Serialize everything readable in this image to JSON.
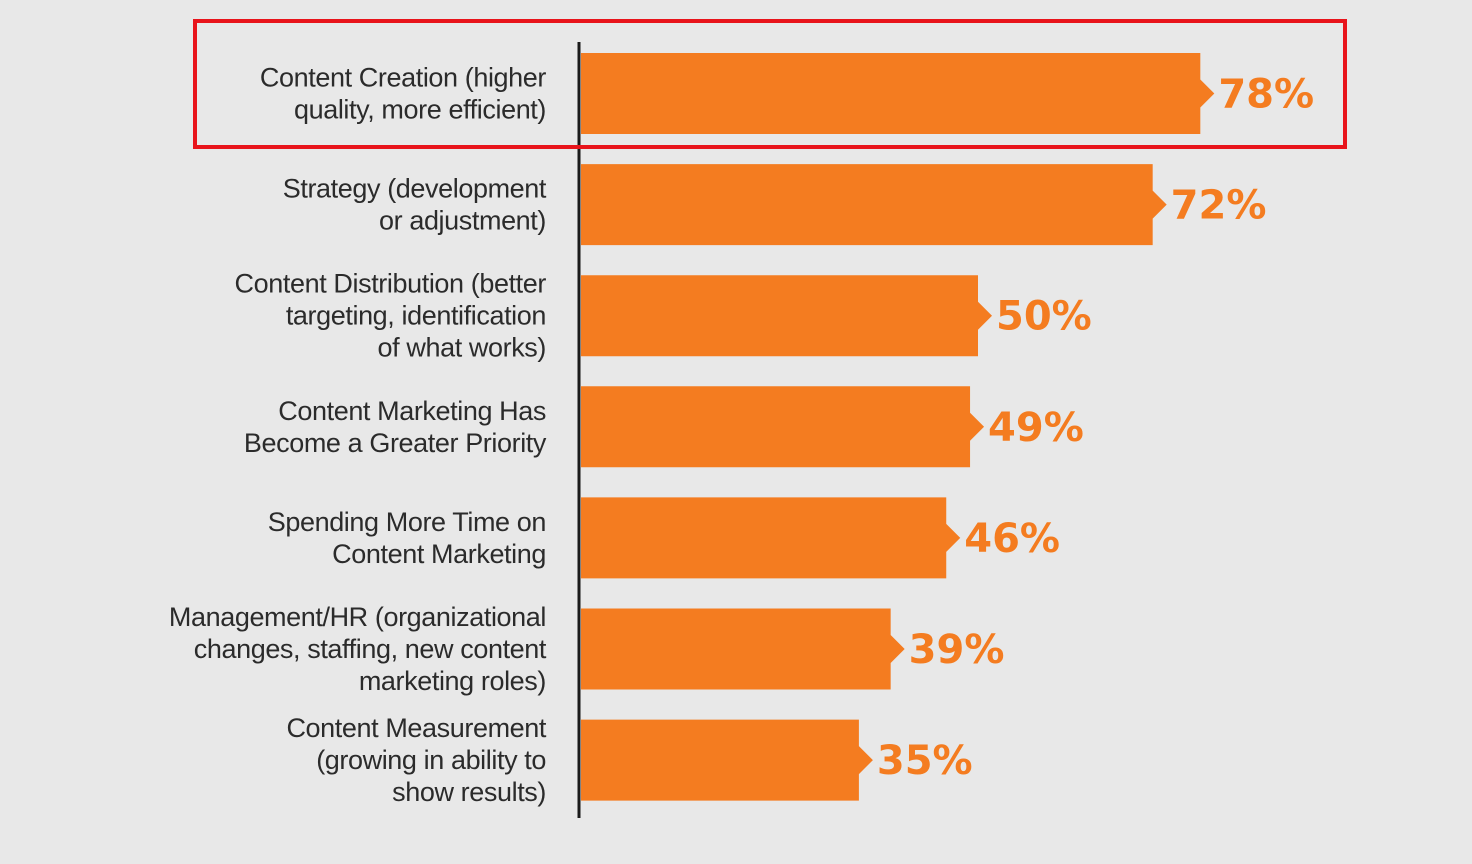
{
  "chart_data": {
    "type": "bar",
    "orientation": "horizontal",
    "categories": [
      [
        "Content Creation (higher",
        "quality, more efficient)"
      ],
      [
        "Strategy (development",
        "or adjustment)"
      ],
      [
        "Content Distribution (better",
        "targeting, identification",
        "of what works)"
      ],
      [
        "Content Marketing Has",
        "Become a Greater Priority"
      ],
      [
        "Spending More Time on",
        "Content Marketing"
      ],
      [
        "Management/HR (organizational",
        "changes, staffing, new content",
        "marketing roles)"
      ],
      [
        "Content Measurement",
        "(growing in ability to",
        "show results)"
      ]
    ],
    "values": [
      78,
      72,
      50,
      49,
      46,
      39,
      35
    ],
    "value_labels": [
      "78%",
      "72%",
      "50%",
      "49%",
      "46%",
      "39%",
      "35%"
    ],
    "value_unit": "%",
    "highlighted_index": 0,
    "grid": false,
    "legend": "none"
  },
  "colors": {
    "background": "#e8e8e8",
    "bar": "#f47c20",
    "value_text": "#f47c20",
    "label_text": "#2b2b2b",
    "axis": "#1a1a1a",
    "highlight_box": "#e8141b"
  }
}
